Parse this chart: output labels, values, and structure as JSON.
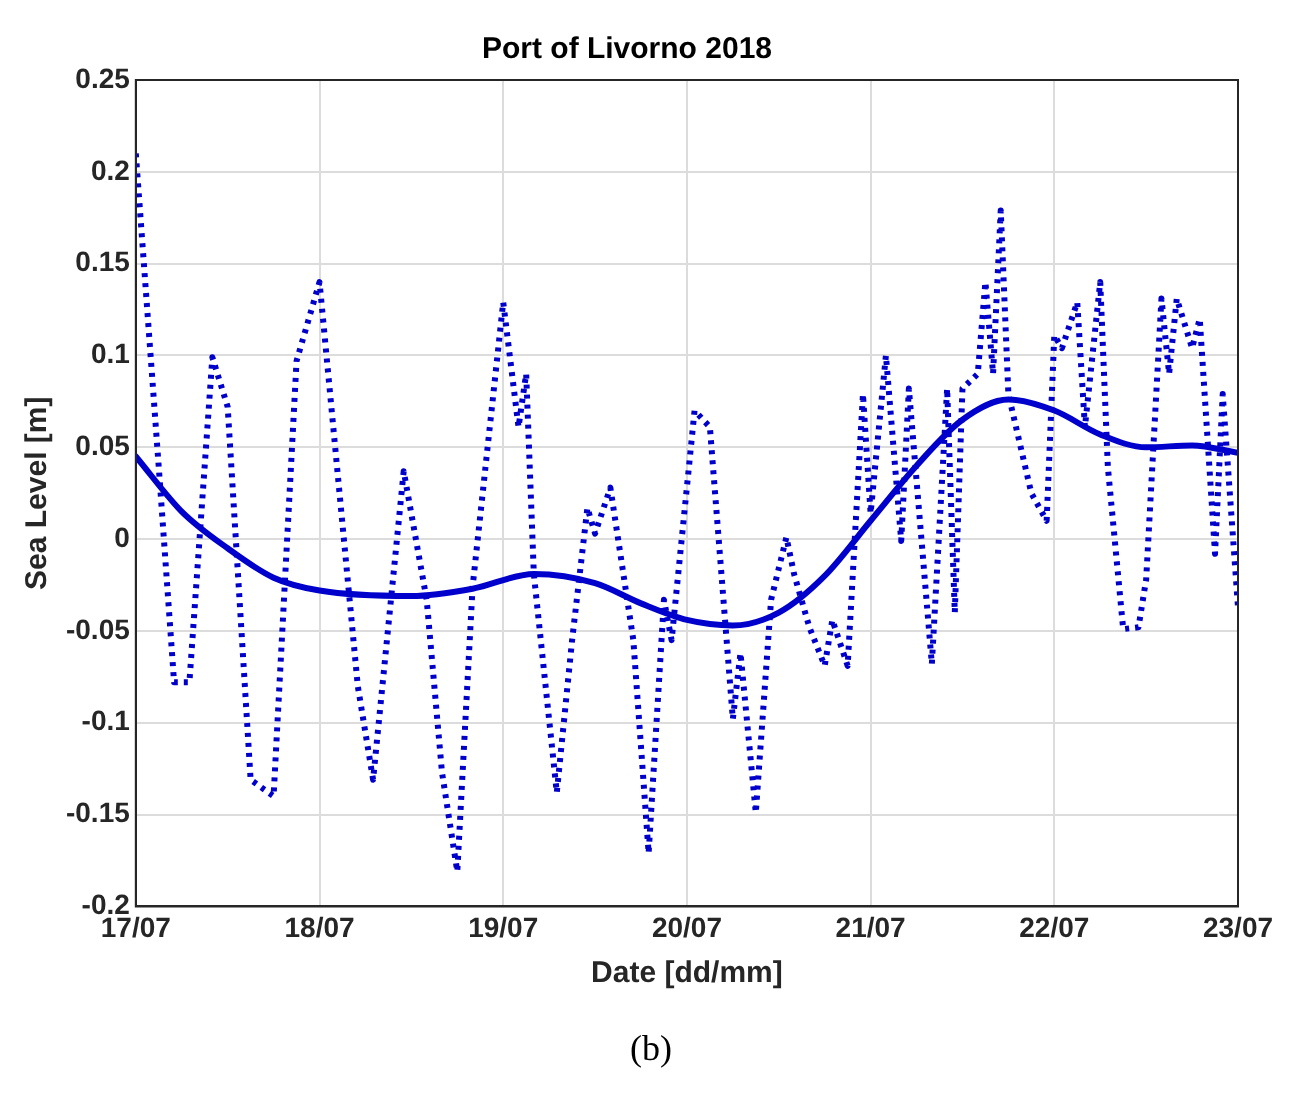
{
  "chart_data": {
    "type": "line",
    "title": "Port of Livorno 2018",
    "xlabel": "Date [dd/mm]",
    "ylabel": "Sea Level [m]",
    "annotations": [
      "(b)"
    ],
    "xlim": [
      "2018-07-17",
      "2018-07-23"
    ],
    "xticks": [
      {
        "value": "2018-07-17",
        "label": "17/07"
      },
      {
        "value": "2018-07-18",
        "label": "18/07"
      },
      {
        "value": "2018-07-19",
        "label": "19/07"
      },
      {
        "value": "2018-07-20",
        "label": "20/07"
      },
      {
        "value": "2018-07-21",
        "label": "21/07"
      },
      {
        "value": "2018-07-22",
        "label": "22/07"
      },
      {
        "value": "2018-07-23",
        "label": "23/07"
      }
    ],
    "ylim": [
      -0.2,
      0.25
    ],
    "yticks": [
      -0.2,
      -0.15,
      -0.1,
      -0.05,
      0,
      0.05,
      0.1,
      0.15,
      0.2,
      0.25
    ],
    "grid": true,
    "legend": false,
    "marker": "none",
    "series": [
      {
        "color": "#0000cc",
        "line_style": "dotted",
        "x": [
          "2018-07-17T00:00",
          "2018-07-17T03:00",
          "2018-07-17T05:00",
          "2018-07-17T07:00",
          "2018-07-17T10:00",
          "2018-07-17T12:00",
          "2018-07-17T15:00",
          "2018-07-17T18:00",
          "2018-07-17T21:00",
          "2018-07-18T00:00",
          "2018-07-18T05:00",
          "2018-07-18T07:00",
          "2018-07-18T11:00",
          "2018-07-18T14:00",
          "2018-07-18T16:00",
          "2018-07-18T18:00",
          "2018-07-18T20:00",
          "2018-07-19T00:00",
          "2018-07-19T02:00",
          "2018-07-19T03:00",
          "2018-07-19T04:00",
          "2018-07-19T07:00",
          "2018-07-19T09:00",
          "2018-07-19T11:00",
          "2018-07-19T12:00",
          "2018-07-19T14:00",
          "2018-07-19T17:00",
          "2018-07-19T19:00",
          "2018-07-19T21:00",
          "2018-07-19T22:00",
          "2018-07-20T01:00",
          "2018-07-20T03:00",
          "2018-07-20T06:00",
          "2018-07-20T07:00",
          "2018-07-20T09:00",
          "2018-07-20T11:00",
          "2018-07-20T13:00",
          "2018-07-20T14:00",
          "2018-07-20T16:00",
          "2018-07-20T18:00",
          "2018-07-20T19:00",
          "2018-07-20T21:00",
          "2018-07-20T23:00",
          "2018-07-21T00:00",
          "2018-07-21T02:00",
          "2018-07-21T04:00",
          "2018-07-21T05:00",
          "2018-07-21T08:00",
          "2018-07-21T10:00",
          "2018-07-21T11:00",
          "2018-07-21T12:00",
          "2018-07-21T14:00",
          "2018-07-21T15:00",
          "2018-07-21T16:00",
          "2018-07-21T17:00",
          "2018-07-21T18:00",
          "2018-07-21T21:00",
          "2018-07-21T23:00",
          "2018-07-22T00:00",
          "2018-07-22T01:00",
          "2018-07-22T03:00",
          "2018-07-22T04:00",
          "2018-07-22T06:00",
          "2018-07-22T07:00",
          "2018-07-22T09:00",
          "2018-07-22T11:00",
          "2018-07-22T12:00",
          "2018-07-22T14:00",
          "2018-07-22T15:00",
          "2018-07-22T16:00",
          "2018-07-22T18:00",
          "2018-07-22T19:00",
          "2018-07-22T21:00",
          "2018-07-22T22:00",
          "2018-07-23T00:00"
        ],
        "values": [
          0.21,
          0.039,
          -0.078,
          -0.078,
          0.099,
          0.072,
          -0.131,
          -0.14,
          0.097,
          0.14,
          -0.08,
          -0.131,
          0.037,
          -0.033,
          -0.127,
          -0.181,
          -0.026,
          0.129,
          0.061,
          0.09,
          -0.019,
          -0.138,
          -0.055,
          0.017,
          0.003,
          0.028,
          -0.055,
          -0.171,
          -0.033,
          -0.055,
          0.07,
          0.061,
          -0.098,
          -0.062,
          -0.149,
          -0.033,
          0.001,
          -0.019,
          -0.048,
          -0.069,
          -0.044,
          -0.069,
          0.079,
          0.014,
          0.1,
          -0.001,
          0.082,
          -0.068,
          0.082,
          -0.04,
          0.082,
          0.09,
          0.14,
          0.09,
          0.179,
          0.079,
          0.025,
          0.01,
          0.111,
          0.104,
          0.129,
          0.061,
          0.14,
          0.039,
          -0.049,
          -0.048,
          -0.022,
          0.131,
          0.09,
          0.131,
          0.104,
          0.12,
          -0.008,
          0.079,
          -0.037
        ]
      },
      {
        "color": "#0000cc",
        "line_style": "solid",
        "x": [
          "2018-07-17T00:00",
          "2018-07-17T06:00",
          "2018-07-17T12:00",
          "2018-07-17T18:00",
          "2018-07-18T00:00",
          "2018-07-18T12:00",
          "2018-07-18T20:00",
          "2018-07-19T04:00",
          "2018-07-19T12:00",
          "2018-07-19T18:00",
          "2018-07-20T00:00",
          "2018-07-20T06:00",
          "2018-07-20T12:00",
          "2018-07-20T18:00",
          "2018-07-21T00:00",
          "2018-07-21T06:00",
          "2018-07-21T12:00",
          "2018-07-21T18:00",
          "2018-07-22T00:00",
          "2018-07-22T06:00",
          "2018-07-22T12:00",
          "2018-07-22T18:00",
          "2018-07-23T00:00"
        ],
        "values": [
          0.045,
          0.015,
          -0.005,
          -0.021,
          -0.028,
          -0.031,
          -0.027,
          -0.019,
          -0.024,
          -0.035,
          -0.044,
          -0.047,
          -0.04,
          -0.02,
          0.01,
          0.04,
          0.065,
          0.076,
          0.07,
          0.057,
          0.05,
          0.051,
          0.047
        ]
      }
    ]
  }
}
